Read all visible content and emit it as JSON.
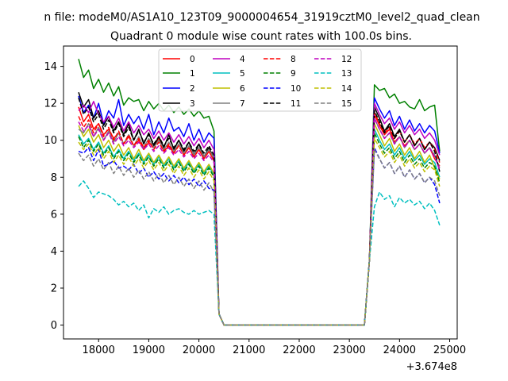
{
  "chart_data": {
    "type": "line",
    "suptitle": "n file: modeM0/AS1A10_123T09_9000004654_31919cztM0_level2_quad_clean",
    "title": "Quadrant 0 module wise count rates with 100.0s bins.",
    "xlabel": "",
    "ylabel": "",
    "x_offset_label": "+3.674e8",
    "xlim": [
      17300,
      25150
    ],
    "ylim": [
      -0.75,
      15.1
    ],
    "xticks": [
      18000,
      19000,
      20000,
      21000,
      22000,
      23000,
      24000,
      25000
    ],
    "xtick_labels": [
      "18000",
      "19000",
      "20000",
      "21000",
      "22000",
      "23000",
      "24000",
      "25000"
    ],
    "yticks": [
      0,
      2,
      4,
      6,
      8,
      10,
      12,
      14
    ],
    "ytick_labels": [
      "0",
      "2",
      "4",
      "6",
      "8",
      "10",
      "12",
      "14"
    ],
    "grid": false,
    "legend_position": "top-center",
    "legend_columns": 4,
    "time": {
      "seg1_start": 17600,
      "seg1_n": 28,
      "transition_x": [
        20400,
        20500
      ],
      "transition_y": [
        0.6,
        0.0
      ],
      "seg2_start": 23500,
      "seg2_n": 14,
      "step": 100
    },
    "series": [
      {
        "name": "0",
        "color": "#ff0000",
        "dash": "solid",
        "values": [
          11.8,
          11.0,
          11.4,
          10.6,
          10.9,
          10.3,
          10.6,
          10.1,
          10.4,
          9.8,
          10.2,
          9.7,
          10.0,
          9.5,
          9.9,
          9.6,
          10.1,
          9.4,
          9.7,
          9.3,
          9.8,
          9.2,
          9.6,
          9.1,
          9.5,
          9.0,
          9.4,
          8.9,
          11.4,
          10.8,
          10.3,
          10.6,
          9.9,
          10.2,
          9.7,
          10.0,
          9.5,
          9.8,
          9.3,
          9.6,
          9.0,
          8.6
        ]
      },
      {
        "name": "1",
        "color": "#008000",
        "dash": "solid",
        "values": [
          14.4,
          13.4,
          13.8,
          12.8,
          13.3,
          12.6,
          13.1,
          12.4,
          12.9,
          11.9,
          12.3,
          12.1,
          12.2,
          11.6,
          12.1,
          11.7,
          12.0,
          11.6,
          11.9,
          11.5,
          11.8,
          11.4,
          11.7,
          11.3,
          11.6,
          11.2,
          11.3,
          10.5,
          13.0,
          12.7,
          12.8,
          12.3,
          12.5,
          12.0,
          12.1,
          11.8,
          11.7,
          12.2,
          11.6,
          11.8,
          11.9,
          9.4
        ]
      },
      {
        "name": "2",
        "color": "#0000ff",
        "dash": "solid",
        "values": [
          12.4,
          11.5,
          11.9,
          11.2,
          12.0,
          10.9,
          11.6,
          11.2,
          12.2,
          10.8,
          11.4,
          10.9,
          11.3,
          10.6,
          11.4,
          10.3,
          11.0,
          10.4,
          11.2,
          10.5,
          10.7,
          10.2,
          10.9,
          10.0,
          10.6,
          9.9,
          10.4,
          10.1,
          12.3,
          11.7,
          11.2,
          11.6,
          10.8,
          11.3,
          10.6,
          11.1,
          10.5,
          10.9,
          10.4,
          10.8,
          10.5,
          9.3
        ]
      },
      {
        "name": "3",
        "color": "#000000",
        "dash": "solid",
        "values": [
          12.6,
          11.8,
          12.2,
          11.2,
          11.6,
          10.8,
          11.3,
          10.5,
          11.0,
          10.3,
          10.9,
          10.0,
          10.6,
          9.8,
          10.4,
          9.7,
          10.2,
          9.6,
          10.3,
          9.5,
          10.0,
          9.4,
          9.9,
          9.2,
          9.8,
          9.1,
          9.6,
          9.0,
          11.8,
          11.2,
          10.5,
          10.9,
          10.2,
          10.6,
          9.9,
          10.3,
          9.7,
          10.1,
          9.5,
          9.9,
          9.6,
          8.9
        ]
      },
      {
        "name": "4",
        "color": "#bf00bf",
        "dash": "solid",
        "values": [
          11.6,
          11.9,
          11.5,
          12.1,
          11.4,
          11.0,
          11.3,
          10.7,
          11.2,
          10.5,
          11.0,
          10.4,
          10.8,
          10.3,
          10.6,
          10.1,
          10.5,
          10.0,
          10.4,
          9.9,
          10.3,
          9.8,
          10.2,
          9.7,
          10.1,
          9.6,
          10.0,
          9.5,
          12.0,
          11.4,
          10.9,
          11.2,
          10.6,
          11.0,
          10.4,
          10.8,
          10.3,
          10.6,
          10.1,
          10.4,
          10.0,
          9.2
        ]
      },
      {
        "name": "5",
        "color": "#00bfbf",
        "dash": "solid",
        "values": [
          10.3,
          9.8,
          10.1,
          9.5,
          9.9,
          9.3,
          9.7,
          9.1,
          9.5,
          9.0,
          9.4,
          8.9,
          9.3,
          8.8,
          9.2,
          8.7,
          9.1,
          8.6,
          9.0,
          8.5,
          8.9,
          8.4,
          8.8,
          8.3,
          8.7,
          8.2,
          8.6,
          8.1,
          10.6,
          10.0,
          9.5,
          9.8,
          9.2,
          9.6,
          9.0,
          9.4,
          8.9,
          9.2,
          8.7,
          9.0,
          8.8,
          8.0
        ]
      },
      {
        "name": "6",
        "color": "#bfbf00",
        "dash": "solid",
        "values": [
          10.8,
          10.2,
          10.6,
          9.9,
          10.3,
          9.6,
          10.0,
          9.4,
          9.8,
          9.2,
          9.6,
          9.0,
          9.5,
          8.9,
          9.3,
          8.8,
          9.2,
          8.7,
          9.1,
          8.6,
          9.0,
          8.5,
          8.9,
          8.4,
          8.8,
          8.3,
          8.7,
          8.2,
          10.9,
          10.3,
          9.7,
          10.1,
          9.4,
          9.8,
          9.2,
          9.6,
          9.0,
          9.4,
          8.8,
          9.2,
          8.5,
          7.9
        ]
      },
      {
        "name": "7",
        "color": "#808080",
        "dash": "solid",
        "values": [
          10.6,
          10.4,
          10.9,
          10.2,
          10.7,
          10.0,
          10.5,
          9.9,
          10.4,
          9.8,
          10.3,
          9.7,
          10.2,
          9.6,
          10.1,
          9.6,
          10.0,
          9.5,
          9.9,
          9.4,
          9.8,
          9.3,
          9.7,
          9.2,
          9.6,
          9.1,
          9.5,
          9.0,
          11.2,
          10.6,
          10.1,
          10.4,
          9.8,
          10.2,
          9.6,
          10.0,
          9.5,
          9.8,
          9.3,
          9.6,
          9.2,
          8.5
        ]
      },
      {
        "name": "8",
        "color": "#ff0000",
        "dash": "dashed",
        "values": [
          11.3,
          10.7,
          11.1,
          10.4,
          10.9,
          10.2,
          10.7,
          10.0,
          10.5,
          9.8,
          10.3,
          9.7,
          10.1,
          9.6,
          10.0,
          9.5,
          9.9,
          9.4,
          9.8,
          9.3,
          9.7,
          9.2,
          9.6,
          9.1,
          9.5,
          9.0,
          9.4,
          8.9,
          11.5,
          10.9,
          10.4,
          10.7,
          10.1,
          10.5,
          9.9,
          10.3,
          9.8,
          10.1,
          9.6,
          9.9,
          9.5,
          8.8
        ]
      },
      {
        "name": "9",
        "color": "#008000",
        "dash": "dashed",
        "values": [
          10.2,
          9.6,
          10.0,
          9.4,
          9.8,
          9.2,
          9.6,
          9.0,
          9.4,
          8.9,
          9.3,
          8.8,
          9.2,
          8.7,
          9.1,
          8.6,
          9.0,
          8.5,
          8.9,
          8.4,
          8.8,
          8.3,
          8.7,
          8.2,
          8.6,
          8.1,
          8.5,
          8.0,
          10.4,
          9.8,
          9.3,
          9.6,
          9.0,
          9.4,
          8.8,
          9.2,
          8.7,
          9.0,
          8.5,
          8.8,
          8.6,
          7.7
        ]
      },
      {
        "name": "10",
        "color": "#0000ff",
        "dash": "dashed",
        "values": [
          9.4,
          9.3,
          9.6,
          8.9,
          9.5,
          8.6,
          8.7,
          8.9,
          8.5,
          8.6,
          8.4,
          8.7,
          8.2,
          8.5,
          8.0,
          8.3,
          7.9,
          8.2,
          7.8,
          8.1,
          7.7,
          8.0,
          7.6,
          7.9,
          7.5,
          7.8,
          7.4,
          7.3,
          9.6,
          9.0,
          8.5,
          8.8,
          8.2,
          8.6,
          8.0,
          8.4,
          7.9,
          8.2,
          7.7,
          8.0,
          7.6,
          6.6
        ]
      },
      {
        "name": "11",
        "color": "#000000",
        "dash": "dashed",
        "values": [
          12.3,
          11.4,
          11.8,
          11.0,
          11.4,
          10.6,
          11.1,
          10.4,
          10.9,
          10.2,
          10.7,
          10.0,
          10.5,
          9.9,
          10.3,
          9.8,
          10.2,
          9.7,
          10.1,
          9.6,
          10.0,
          9.5,
          9.9,
          9.4,
          9.8,
          9.3,
          9.7,
          9.2,
          11.6,
          11.0,
          10.4,
          10.8,
          10.1,
          10.5,
          9.9,
          10.3,
          9.7,
          10.1,
          9.5,
          9.9,
          9.4,
          8.3
        ]
      },
      {
        "name": "12",
        "color": "#bf00bf",
        "dash": "dashed",
        "values": [
          11.0,
          10.5,
          10.8,
          10.2,
          10.6,
          10.0,
          10.4,
          9.8,
          10.2,
          9.7,
          10.0,
          9.6,
          9.9,
          9.5,
          9.8,
          9.4,
          9.7,
          9.3,
          9.6,
          9.2,
          9.5,
          9.1,
          9.4,
          9.0,
          9.3,
          8.9,
          9.2,
          8.8,
          11.2,
          10.6,
          10.1,
          10.4,
          9.8,
          10.2,
          9.6,
          10.0,
          9.5,
          9.8,
          9.3,
          9.6,
          9.1,
          8.4
        ]
      },
      {
        "name": "13",
        "color": "#00bfbf",
        "dash": "dashed",
        "values": [
          7.5,
          7.8,
          7.4,
          6.9,
          7.2,
          7.1,
          7.0,
          6.8,
          6.5,
          6.7,
          6.4,
          6.6,
          6.2,
          6.5,
          5.8,
          6.3,
          6.1,
          6.4,
          6.0,
          6.2,
          6.3,
          6.1,
          6.0,
          6.2,
          6.0,
          6.1,
          6.2,
          6.0,
          6.4,
          7.2,
          6.8,
          7.0,
          6.4,
          6.9,
          6.6,
          6.8,
          6.5,
          6.7,
          6.3,
          6.6,
          6.2,
          5.4
        ]
      },
      {
        "name": "14",
        "color": "#bfbf00",
        "dash": "dashed",
        "values": [
          9.9,
          9.5,
          9.8,
          9.2,
          9.6,
          9.0,
          9.4,
          8.8,
          9.2,
          8.7,
          9.1,
          8.6,
          9.0,
          8.5,
          8.9,
          8.4,
          8.8,
          8.3,
          8.7,
          8.2,
          8.6,
          8.1,
          8.5,
          8.0,
          8.4,
          7.9,
          8.3,
          7.8,
          10.1,
          9.6,
          9.1,
          9.4,
          8.8,
          9.2,
          8.6,
          9.0,
          8.5,
          8.8,
          8.3,
          8.6,
          8.4,
          7.5
        ]
      },
      {
        "name": "15",
        "color": "#808080",
        "dash": "dashed",
        "values": [
          9.3,
          8.9,
          9.2,
          8.6,
          9.0,
          8.4,
          8.8,
          8.2,
          8.6,
          8.1,
          8.5,
          8.0,
          8.4,
          7.9,
          8.3,
          7.8,
          8.2,
          7.7,
          8.1,
          7.6,
          8.0,
          7.5,
          7.9,
          7.4,
          7.8,
          7.3,
          7.7,
          7.2,
          9.5,
          9.0,
          8.5,
          8.8,
          8.2,
          8.6,
          8.0,
          8.4,
          7.9,
          8.2,
          7.7,
          8.0,
          7.8,
          7.0
        ]
      }
    ]
  }
}
